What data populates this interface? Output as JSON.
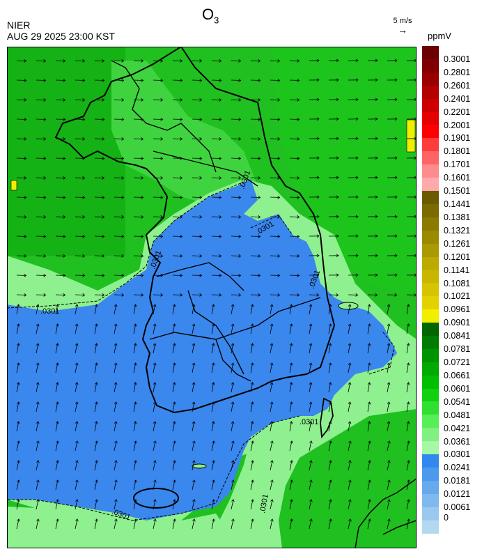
{
  "header": {
    "agency": "NIER",
    "datetime": "AUG 29 2025 23:00 KST",
    "title_main": "O",
    "title_sub": "3",
    "wind_reference": "5 m/s",
    "unit": "ppmV"
  },
  "contour_labels": [
    ".0301",
    ".0301",
    ".0301",
    ".0301",
    ".0301",
    ".0301",
    ".0301",
    ".0301"
  ],
  "legend": {
    "ticks": [
      "0.3001",
      "0.2801",
      "0.2601",
      "0.2401",
      "0.2201",
      "0.2001",
      "0.1901",
      "0.1801",
      "0.1701",
      "0.1601",
      "0.1501",
      "0.1441",
      "0.1381",
      "0.1321",
      "0.1261",
      "0.1201",
      "0.1141",
      "0.1081",
      "0.1021",
      "0.0961",
      "0.0901",
      "0.0841",
      "0.0781",
      "0.0721",
      "0.0661",
      "0.0601",
      "0.0541",
      "0.0481",
      "0.0421",
      "0.0361",
      "0.0301",
      "0.0241",
      "0.0181",
      "0.0121",
      "0.0061",
      "0"
    ],
    "colors": [
      "#6b0000",
      "#7e0000",
      "#9a0000",
      "#b30000",
      "#cc0000",
      "#e60000",
      "#ff0000",
      "#ff3c3c",
      "#ff6464",
      "#ff8c8c",
      "#ffaaaa",
      "#6b5a00",
      "#7a6a00",
      "#8a7a00",
      "#9a8a00",
      "#aa9900",
      "#bbaa00",
      "#c8b600",
      "#d6c400",
      "#e4d200",
      "#f2ee00",
      "#006600",
      "#007d00",
      "#009400",
      "#00aa00",
      "#00bf00",
      "#10d010",
      "#30e030",
      "#58ee58",
      "#80f080",
      "#a6f7a6",
      "#3388ee",
      "#4c99ee",
      "#66a9ee",
      "#80b9ee",
      "#99c9ee",
      "#b3d9ee"
    ]
  },
  "colors": {
    "background_low": "#3a87ee",
    "ocean_green": "#1fc81f",
    "north_green": "#17bf17",
    "light_green": "#8ef08e",
    "highlight_yellow": "#f2ee00"
  }
}
